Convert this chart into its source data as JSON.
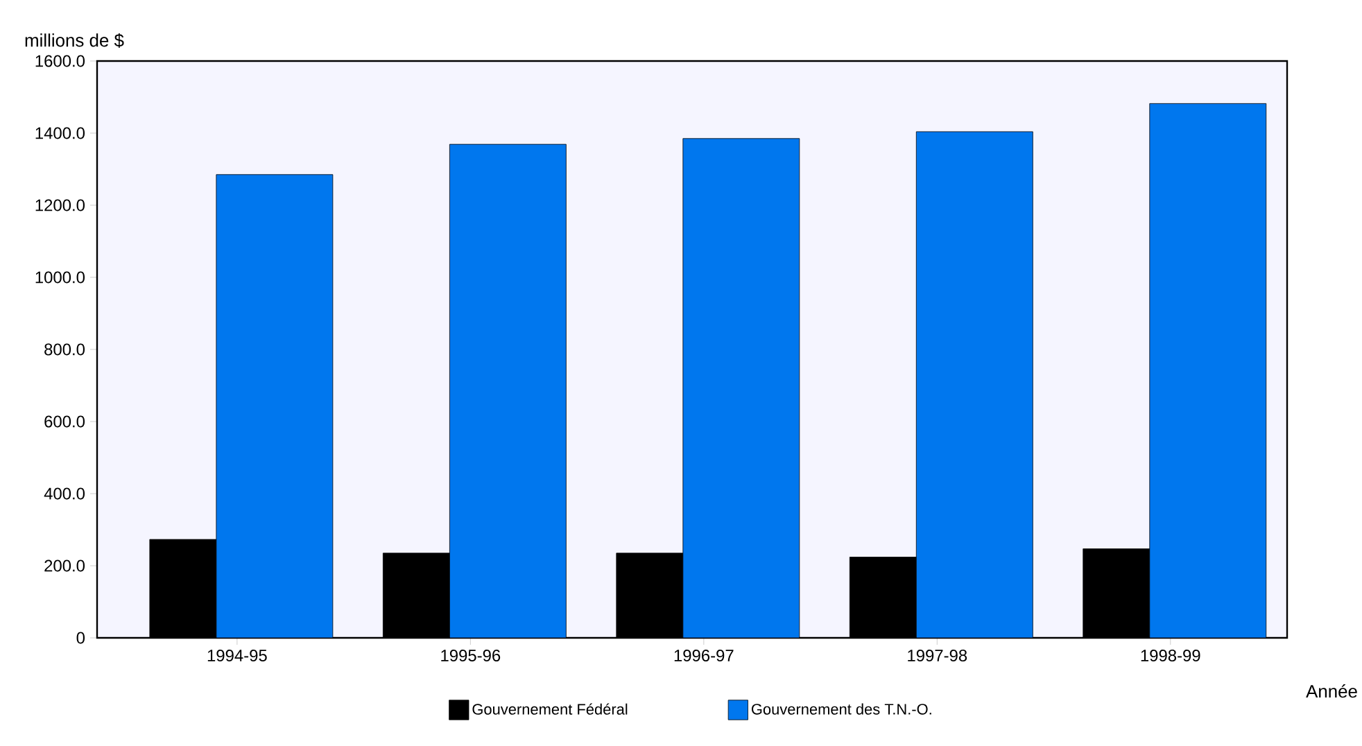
{
  "chart_data": {
    "type": "bar",
    "xlabel": "Année",
    "ylabel": "millions de $",
    "categories": [
      "1994-95",
      "1995-96",
      "1996-97",
      "1997-98",
      "1998-99"
    ],
    "series": [
      {
        "name": "Gouvernement Fédéral",
        "color": "#000000",
        "values": [
          273,
          235,
          235,
          224,
          247
        ]
      },
      {
        "name": "Gouvernement des T.N.-O.",
        "color": "#0077ee",
        "values": [
          1285,
          1369,
          1385,
          1404,
          1482
        ]
      }
    ],
    "ylim": [
      0,
      1600
    ],
    "yticks": [
      0,
      {
        "value": 200,
        "label": "200.0"
      },
      {
        "value": 400,
        "label": "400.0"
      },
      {
        "value": 600,
        "label": "600.0"
      },
      {
        "value": 800,
        "label": "800.0"
      },
      {
        "value": 1000,
        "label": "1000.0"
      },
      {
        "value": 1200,
        "label": "1200.0"
      },
      {
        "value": 1400,
        "label": "1400.0"
      },
      {
        "value": 1600,
        "label": "1600.0"
      }
    ],
    "legend": "bottom",
    "grid": false
  }
}
